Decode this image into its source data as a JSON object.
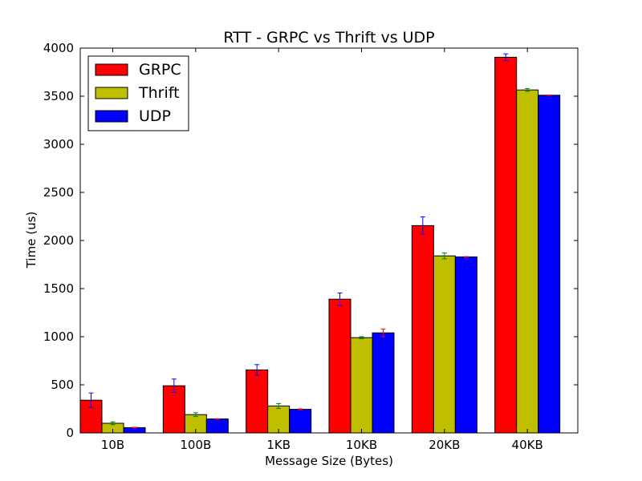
{
  "chart_data": {
    "type": "bar",
    "title": "RTT - GRPC vs Thrift vs UDP",
    "xlabel": "Message Size (Bytes)",
    "ylabel": "Time (us)",
    "ylim": [
      0,
      4000
    ],
    "yticks": [
      "0",
      "500",
      "1000",
      "1500",
      "2000",
      "2500",
      "3000",
      "3500",
      "4000"
    ],
    "categories": [
      "10B",
      "100B",
      "1KB",
      "10KB",
      "20KB",
      "40KB"
    ],
    "grid": false,
    "legend_position": "top-left",
    "series": [
      {
        "name": "GRPC",
        "color": "#ff0000",
        "error_color": "#0000ff",
        "values": [
          340,
          490,
          655,
          1390,
          2155,
          3905
        ],
        "errors": [
          75,
          70,
          55,
          65,
          90,
          35
        ]
      },
      {
        "name": "Thrift",
        "color": "#bfbf00",
        "error_color": "#008000",
        "values": [
          100,
          190,
          280,
          990,
          1840,
          3565
        ],
        "errors": [
          15,
          20,
          25,
          10,
          30,
          15
        ]
      },
      {
        "name": "UDP",
        "color": "#0000ff",
        "error_color": "#ff0000",
        "values": [
          55,
          145,
          245,
          1040,
          1830,
          3510
        ],
        "errors": [
          3,
          3,
          5,
          40,
          3,
          3
        ]
      }
    ]
  }
}
